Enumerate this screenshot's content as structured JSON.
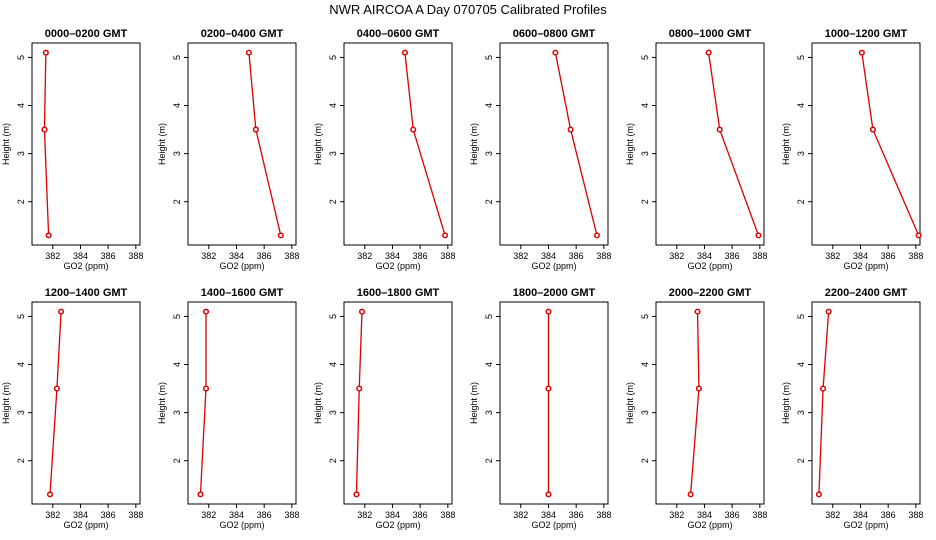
{
  "figure_title": "NWR AIRCOA A  Day 070705  Calibrated Profiles",
  "chart_data": [
    {
      "type": "line",
      "title": "0000–0200 GMT",
      "xlabel": "GO2 (ppm)",
      "ylabel": "Height (m)",
      "xlim": [
        380.5,
        388.3
      ],
      "ylim": [
        1.1,
        5.3
      ],
      "xticks": [
        "382",
        "384",
        "386",
        "388"
      ],
      "yticks": [
        "2",
        "3",
        "4",
        "5"
      ],
      "x": [
        381.7,
        381.4,
        381.5
      ],
      "y": [
        1.3,
        3.5,
        5.1
      ]
    },
    {
      "type": "line",
      "title": "0200–0400 GMT",
      "xlabel": "GO2 (ppm)",
      "ylabel": "Height (m)",
      "xlim": [
        380.5,
        388.3
      ],
      "ylim": [
        1.1,
        5.3
      ],
      "xticks": [
        "382",
        "384",
        "386",
        "388"
      ],
      "yticks": [
        "2",
        "3",
        "4",
        "5"
      ],
      "x": [
        387.2,
        385.4,
        384.9
      ],
      "y": [
        1.3,
        3.5,
        5.1
      ]
    },
    {
      "type": "line",
      "title": "0400–0600 GMT",
      "xlabel": "GO2 (ppm)",
      "ylabel": "Height (m)",
      "xlim": [
        380.5,
        388.3
      ],
      "ylim": [
        1.1,
        5.3
      ],
      "xticks": [
        "382",
        "384",
        "386",
        "388"
      ],
      "yticks": [
        "2",
        "3",
        "4",
        "5"
      ],
      "x": [
        387.8,
        385.5,
        384.9
      ],
      "y": [
        1.3,
        3.5,
        5.1
      ]
    },
    {
      "type": "line",
      "title": "0600–0800 GMT",
      "xlabel": "GO2 (ppm)",
      "ylabel": "Height (m)",
      "xlim": [
        380.5,
        388.3
      ],
      "ylim": [
        1.1,
        5.3
      ],
      "xticks": [
        "382",
        "384",
        "386",
        "388"
      ],
      "yticks": [
        "2",
        "3",
        "4",
        "5"
      ],
      "x": [
        387.5,
        385.6,
        384.5
      ],
      "y": [
        1.3,
        3.5,
        5.1
      ]
    },
    {
      "type": "line",
      "title": "0800–1000 GMT",
      "xlabel": "GO2 (ppm)",
      "ylabel": "Height (m)",
      "xlim": [
        380.5,
        388.3
      ],
      "ylim": [
        1.1,
        5.3
      ],
      "xticks": [
        "382",
        "384",
        "386",
        "388"
      ],
      "yticks": [
        "2",
        "3",
        "4",
        "5"
      ],
      "x": [
        387.9,
        385.1,
        384.3
      ],
      "y": [
        1.3,
        3.5,
        5.1
      ]
    },
    {
      "type": "line",
      "title": "1000–1200 GMT",
      "xlabel": "GO2 (ppm)",
      "ylabel": "Height (m)",
      "xlim": [
        380.5,
        388.3
      ],
      "ylim": [
        1.1,
        5.3
      ],
      "xticks": [
        "382",
        "384",
        "386",
        "388"
      ],
      "yticks": [
        "2",
        "3",
        "4",
        "5"
      ],
      "x": [
        388.2,
        384.9,
        384.1
      ],
      "y": [
        1.3,
        3.5,
        5.1
      ]
    },
    {
      "type": "line",
      "title": "1200–1400 GMT",
      "xlabel": "GO2 (ppm)",
      "ylabel": "Height (m)",
      "xlim": [
        380.5,
        388.3
      ],
      "ylim": [
        1.1,
        5.3
      ],
      "xticks": [
        "382",
        "384",
        "386",
        "388"
      ],
      "yticks": [
        "2",
        "3",
        "4",
        "5"
      ],
      "x": [
        381.8,
        382.3,
        382.6
      ],
      "y": [
        1.3,
        3.5,
        5.1
      ]
    },
    {
      "type": "line",
      "title": "1400–1600 GMT",
      "xlabel": "GO2 (ppm)",
      "ylabel": "Height (m)",
      "xlim": [
        380.5,
        388.3
      ],
      "ylim": [
        1.1,
        5.3
      ],
      "xticks": [
        "382",
        "384",
        "386",
        "388"
      ],
      "yticks": [
        "2",
        "3",
        "4",
        "5"
      ],
      "x": [
        381.4,
        381.8,
        381.8
      ],
      "y": [
        1.3,
        3.5,
        5.1
      ]
    },
    {
      "type": "line",
      "title": "1600–1800 GMT",
      "xlabel": "GO2 (ppm)",
      "ylabel": "Height (m)",
      "xlim": [
        380.5,
        388.3
      ],
      "ylim": [
        1.1,
        5.3
      ],
      "xticks": [
        "382",
        "384",
        "386",
        "388"
      ],
      "yticks": [
        "2",
        "3",
        "4",
        "5"
      ],
      "x": [
        381.4,
        381.6,
        381.8
      ],
      "y": [
        1.3,
        3.5,
        5.1
      ]
    },
    {
      "type": "line",
      "title": "1800–2000 GMT",
      "xlabel": "GO2 (ppm)",
      "ylabel": "Height (m)",
      "xlim": [
        380.5,
        388.3
      ],
      "ylim": [
        1.1,
        5.3
      ],
      "xticks": [
        "382",
        "384",
        "386",
        "388"
      ],
      "yticks": [
        "2",
        "3",
        "4",
        "5"
      ],
      "x": [
        384.0,
        384.0,
        384.0
      ],
      "y": [
        1.3,
        3.5,
        5.1
      ]
    },
    {
      "type": "line",
      "title": "2000–2200 GMT",
      "xlabel": "GO2 (ppm)",
      "ylabel": "Height (m)",
      "xlim": [
        380.5,
        388.3
      ],
      "ylim": [
        1.1,
        5.3
      ],
      "xticks": [
        "382",
        "384",
        "386",
        "388"
      ],
      "yticks": [
        "2",
        "3",
        "4",
        "5"
      ],
      "x": [
        383.0,
        383.6,
        383.5
      ],
      "y": [
        1.3,
        3.5,
        5.1
      ]
    },
    {
      "type": "line",
      "title": "2200–2400 GMT",
      "xlabel": "GO2 (ppm)",
      "ylabel": "Height (m)",
      "xlim": [
        380.5,
        388.3
      ],
      "ylim": [
        1.1,
        5.3
      ],
      "xticks": [
        "382",
        "384",
        "386",
        "388"
      ],
      "yticks": [
        "2",
        "3",
        "4",
        "5"
      ],
      "x": [
        381.0,
        381.3,
        381.7
      ],
      "y": [
        1.3,
        3.5,
        5.1
      ]
    }
  ]
}
